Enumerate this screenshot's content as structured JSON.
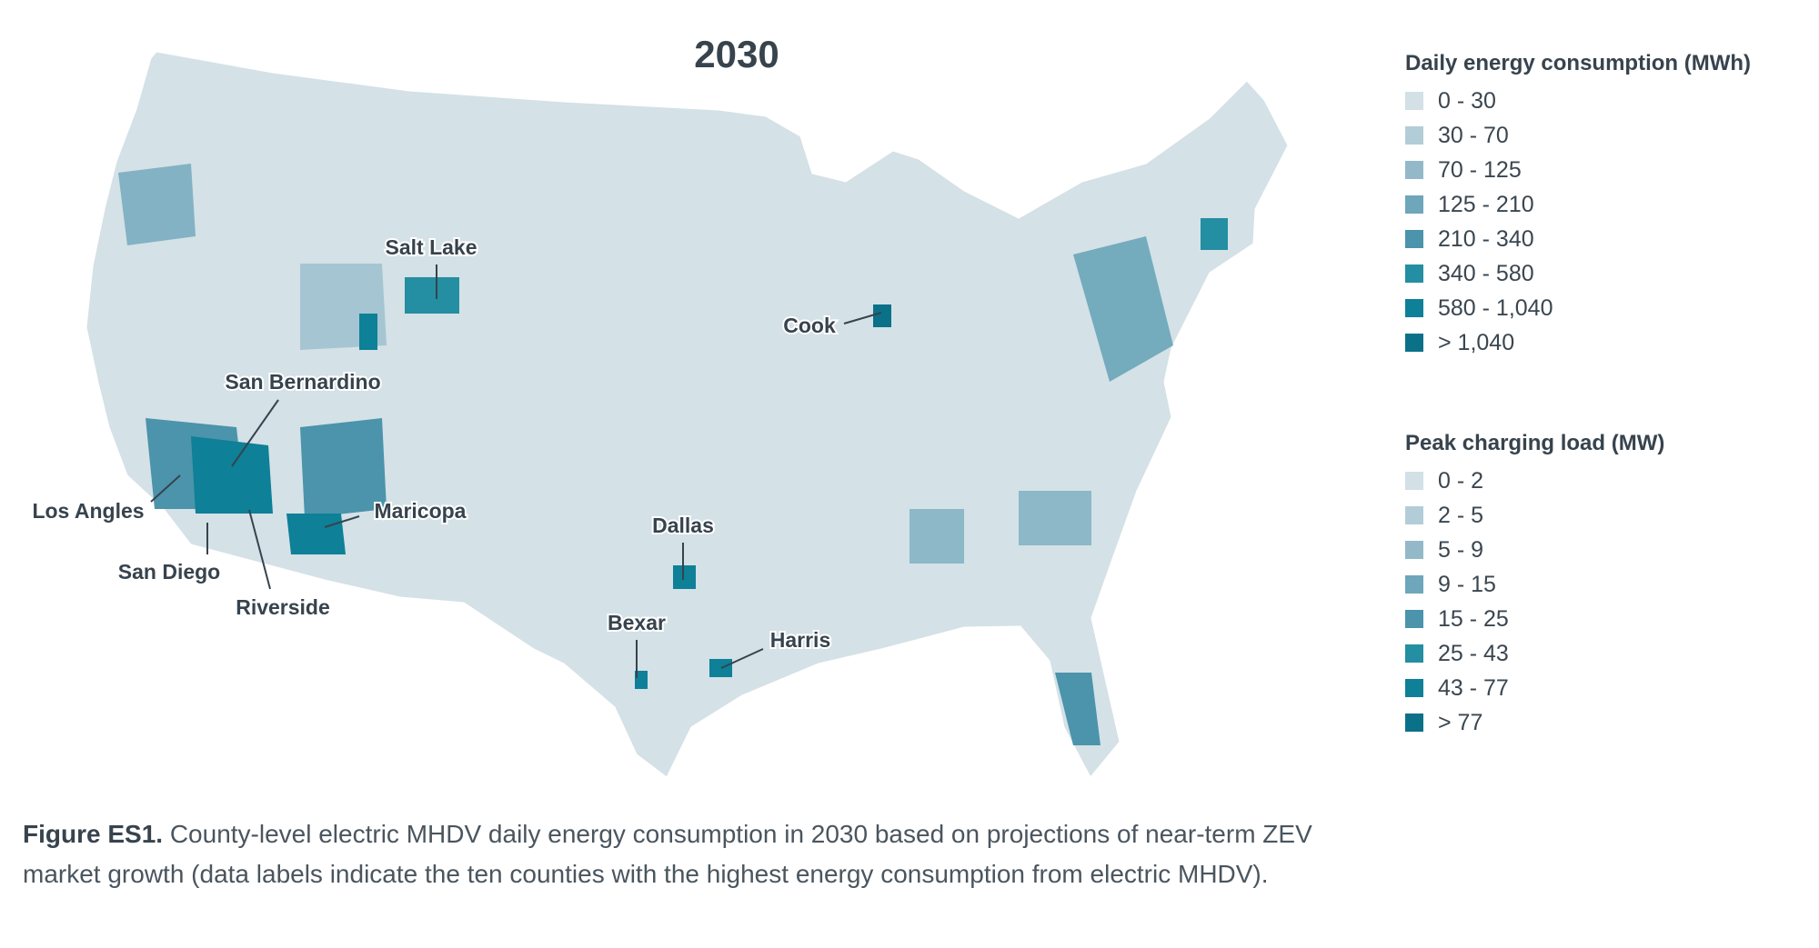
{
  "title": "2030",
  "legend_energy": {
    "heading": "Daily energy consumption (MWh)",
    "items": [
      {
        "label": "0 - 30",
        "color": "#d3e0e6"
      },
      {
        "label": "30 - 70",
        "color": "#b3cdd8"
      },
      {
        "label": "70 - 125",
        "color": "#93b9c9"
      },
      {
        "label": "125 - 210",
        "color": "#6ea6bb"
      },
      {
        "label": "210 - 340",
        "color": "#4b94ab"
      },
      {
        "label": "340 - 580",
        "color": "#248ea2"
      },
      {
        "label": "580 - 1,040",
        "color": "#0e8097"
      },
      {
        "label": "> 1,040",
        "color": "#0b7189"
      }
    ]
  },
  "legend_peak": {
    "heading": "Peak charging load (MW)",
    "items": [
      {
        "label": "0 - 2",
        "color": "#d3e0e6"
      },
      {
        "label": "2 - 5",
        "color": "#b3cdd8"
      },
      {
        "label": "5 - 9",
        "color": "#93b9c9"
      },
      {
        "label": "9 - 15",
        "color": "#6ea6bb"
      },
      {
        "label": "15 - 25",
        "color": "#4b94ab"
      },
      {
        "label": "25 - 43",
        "color": "#248ea2"
      },
      {
        "label": "43 - 77",
        "color": "#0e8097"
      },
      {
        "label": "> 77",
        "color": "#0b7189"
      }
    ]
  },
  "county_labels": [
    "Salt Lake",
    "Cook",
    "San Bernardino",
    "Los Angles",
    "Maricopa",
    "San Diego",
    "Riverside",
    "Dallas",
    "Bexar",
    "Harris"
  ],
  "caption": {
    "bold": "Figure ES1.",
    "text": " County-level electric MHDV daily energy consumption in 2030 based on projections of near-term ZEV market growth (data labels indicate the ten counties with the highest energy consumption from electric MHDV)."
  }
}
